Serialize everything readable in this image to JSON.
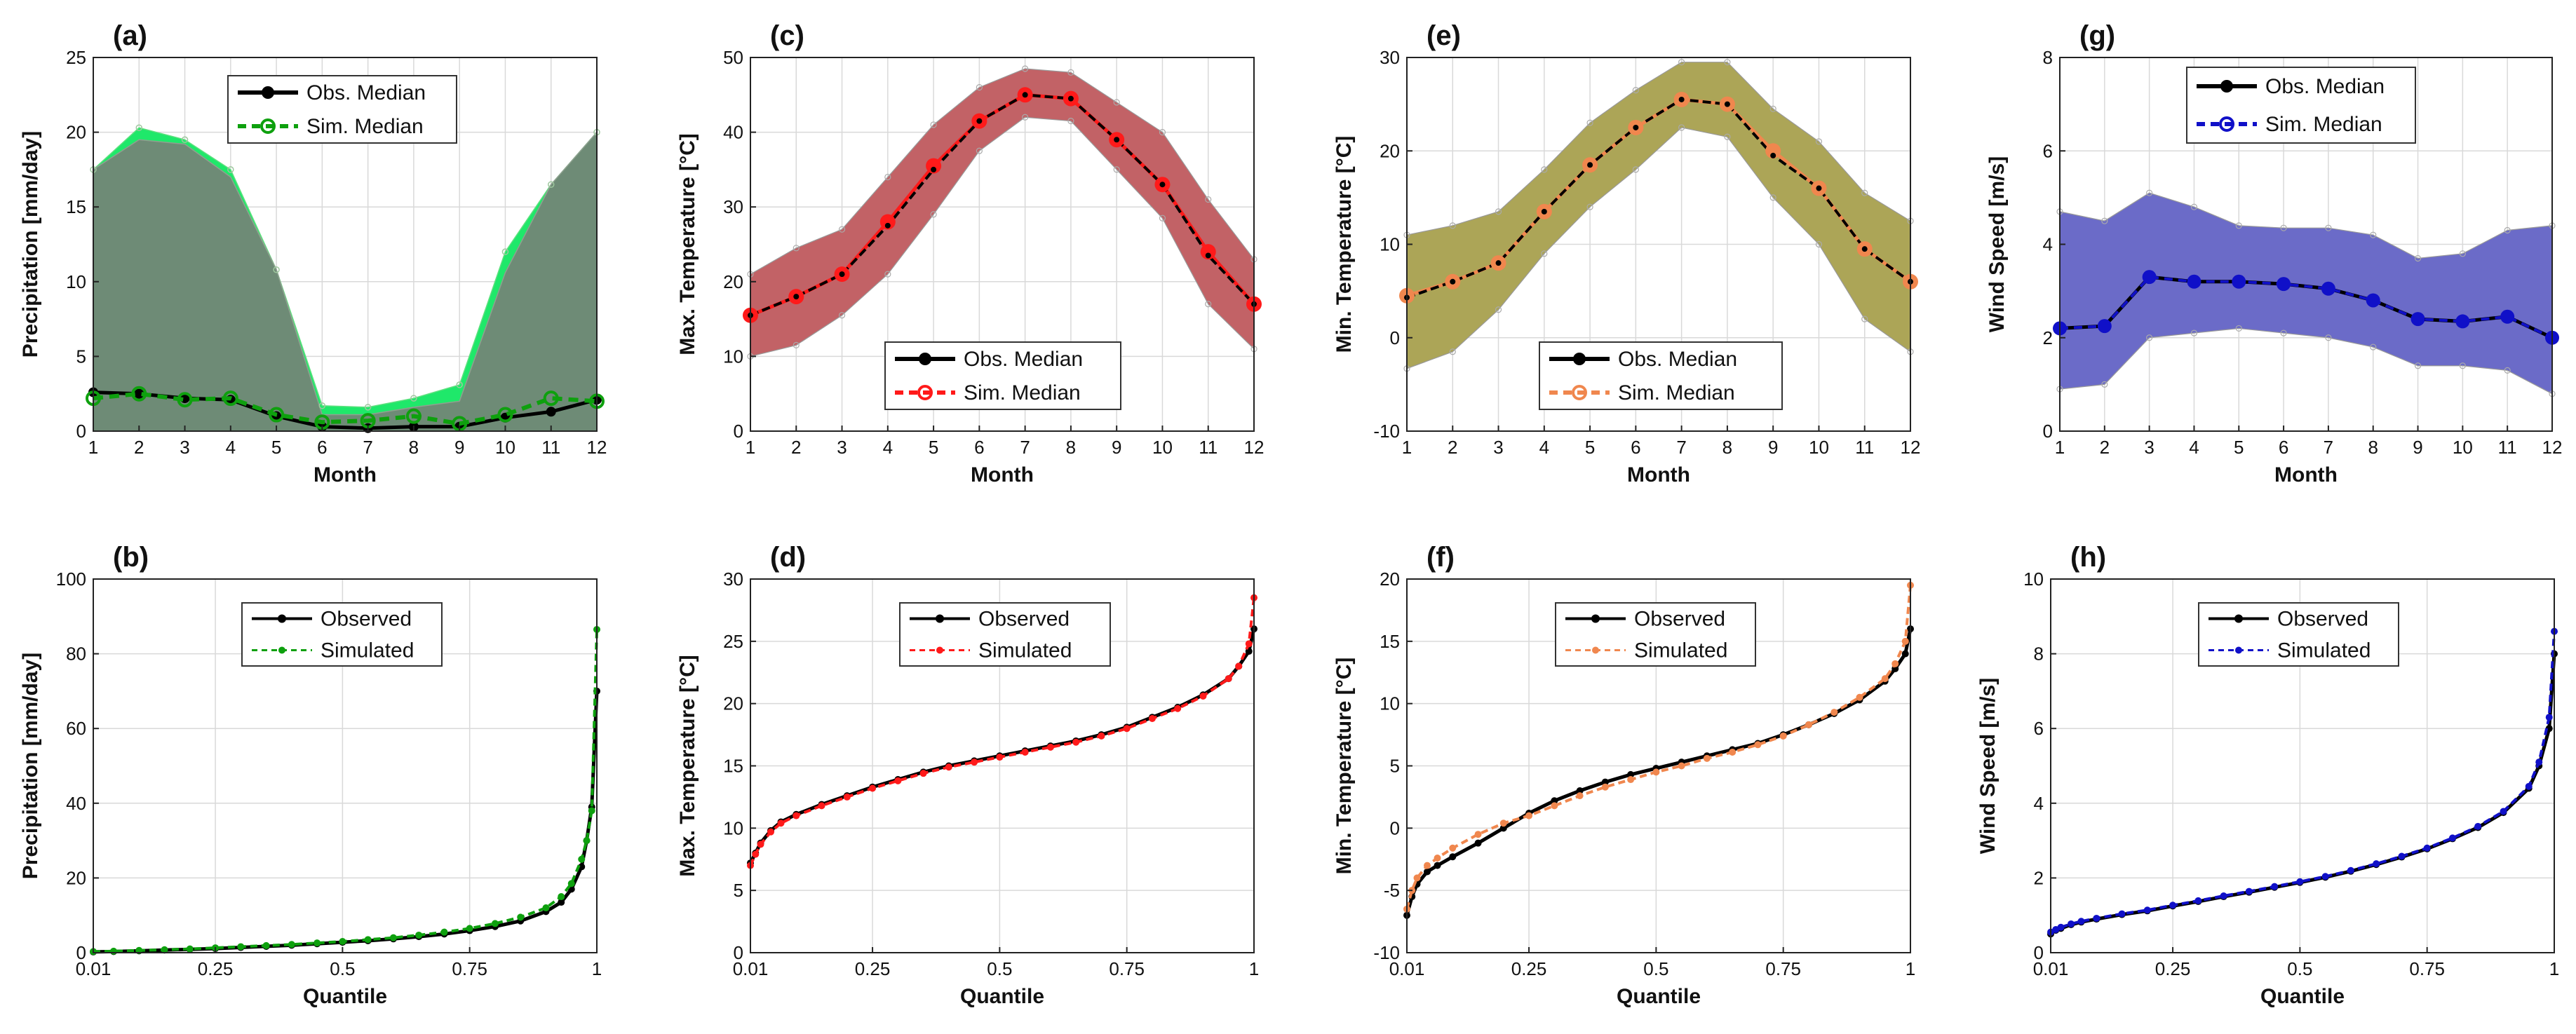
{
  "colors": {
    "precip_band_sim": "#1fe86a",
    "precip_band_obs": "#6e8b76",
    "precip_sim": "#0ea00e",
    "tmax_band": "#c26266",
    "tmax_sim": "#ff1a1a",
    "tmin_band": "#aca557",
    "tmin_sim": "#f0874e",
    "wind_band": "#6b6bc8",
    "wind_sim": "#1010c8",
    "obs": "#000000"
  },
  "chart_data": [
    {
      "id": "a",
      "panel_label": "(a)",
      "type": "area",
      "x": [
        1,
        2,
        3,
        4,
        5,
        6,
        7,
        8,
        9,
        10,
        11,
        12
      ],
      "xlabel": "Month",
      "ylabel": "Precipitation [mm/day]",
      "xlim": [
        1,
        12
      ],
      "ylim": [
        0,
        25
      ],
      "yticks": [
        0,
        5,
        10,
        15,
        20,
        25
      ],
      "ytick_labels": [
        "0",
        "5",
        "10",
        "15",
        "20",
        "25"
      ],
      "xticks": [
        1,
        2,
        3,
        4,
        5,
        6,
        7,
        8,
        9,
        10,
        11,
        12
      ],
      "xtick_labels": [
        "1",
        "2",
        "3",
        "4",
        "5",
        "6",
        "7",
        "8",
        "9",
        "10",
        "11",
        "12"
      ],
      "band_sim": {
        "lower": [
          0,
          0,
          0,
          0,
          0,
          0,
          0,
          0,
          0,
          0,
          0,
          0
        ],
        "upper": [
          17.5,
          20.3,
          19.5,
          17.5,
          10.8,
          1.7,
          1.6,
          2.2,
          3.1,
          12.0,
          16.5,
          20.0
        ]
      },
      "band_obs": {
        "lower": [
          0,
          0,
          0,
          0,
          0,
          0,
          0,
          0,
          0,
          0,
          0,
          0
        ],
        "upper": [
          17.5,
          19.5,
          19.2,
          17.0,
          10.8,
          1.1,
          1.1,
          1.6,
          2.0,
          10.6,
          16.5,
          20.0
        ]
      },
      "series": [
        {
          "name": "Obs. Median",
          "values": [
            2.6,
            2.5,
            2.2,
            2.1,
            1.0,
            0.3,
            0.2,
            0.3,
            0.3,
            0.9,
            1.3,
            2.1
          ]
        },
        {
          "name": "Sim. Median",
          "values": [
            2.2,
            2.5,
            2.1,
            2.2,
            1.1,
            0.6,
            0.7,
            1.0,
            0.5,
            1.1,
            2.2,
            2.0
          ]
        }
      ],
      "legend": [
        "Obs. Median",
        "Sim. Median"
      ]
    },
    {
      "id": "c",
      "panel_label": "(c)",
      "type": "area",
      "x": [
        1,
        2,
        3,
        4,
        5,
        6,
        7,
        8,
        9,
        10,
        11,
        12
      ],
      "xlabel": "Month",
      "ylabel": "Max. Temperature [°C]",
      "xlim": [
        1,
        12
      ],
      "ylim": [
        0,
        50
      ],
      "yticks": [
        0,
        10,
        20,
        30,
        40,
        50
      ],
      "ytick_labels": [
        "0",
        "10",
        "20",
        "30",
        "40",
        "50"
      ],
      "xticks": [
        1,
        2,
        3,
        4,
        5,
        6,
        7,
        8,
        9,
        10,
        11,
        12
      ],
      "xtick_labels": [
        "1",
        "2",
        "3",
        "4",
        "5",
        "6",
        "7",
        "8",
        "9",
        "10",
        "11",
        "12"
      ],
      "band": {
        "lower": [
          10,
          11.5,
          15.5,
          21,
          29,
          37.5,
          42,
          41.5,
          35,
          28.5,
          17,
          11
        ],
        "upper": [
          21,
          24.5,
          27,
          34,
          41,
          46,
          48.5,
          48,
          44,
          40,
          31,
          23
        ]
      },
      "series": [
        {
          "name": "Obs. Median",
          "values": [
            15.5,
            18,
            21,
            27.5,
            35,
            41.5,
            45,
            44.5,
            39,
            33,
            23.5,
            17
          ]
        },
        {
          "name": "Sim. Median",
          "values": [
            15.5,
            18,
            21,
            28,
            35.5,
            41.5,
            45,
            44.5,
            39,
            33,
            24,
            17
          ]
        }
      ],
      "legend": [
        "Obs. Median",
        "Sim. Median"
      ]
    },
    {
      "id": "e",
      "panel_label": "(e)",
      "type": "area",
      "x": [
        1,
        2,
        3,
        4,
        5,
        6,
        7,
        8,
        9,
        10,
        11,
        12
      ],
      "xlabel": "Month",
      "ylabel": "Min. Temperature [°C]",
      "xlim": [
        1,
        12
      ],
      "ylim": [
        -10,
        30
      ],
      "yticks": [
        -10,
        0,
        10,
        20,
        30
      ],
      "ytick_labels": [
        "-10",
        "0",
        "10",
        "20",
        "30"
      ],
      "xticks": [
        1,
        2,
        3,
        4,
        5,
        6,
        7,
        8,
        9,
        10,
        11,
        12
      ],
      "xtick_labels": [
        "1",
        "2",
        "3",
        "4",
        "5",
        "6",
        "7",
        "8",
        "9",
        "10",
        "11",
        "12"
      ],
      "band": {
        "lower": [
          -3.3,
          -1.5,
          3,
          9,
          14,
          18,
          22.5,
          21.5,
          15,
          10,
          2,
          -1.5
        ],
        "upper": [
          11,
          12,
          13.5,
          18,
          23,
          26.5,
          29.5,
          29.5,
          24.5,
          21,
          15.5,
          12.5
        ]
      },
      "series": [
        {
          "name": "Obs. Median",
          "values": [
            4.3,
            6,
            8,
            13.5,
            18.5,
            22.5,
            25.5,
            25,
            19.5,
            16,
            9.5,
            6
          ]
        },
        {
          "name": "Sim. Median",
          "values": [
            4.5,
            6,
            8,
            13.5,
            18.5,
            22.5,
            25.5,
            25,
            20,
            16,
            9.5,
            6
          ]
        }
      ],
      "legend": [
        "Obs. Median",
        "Sim. Median"
      ]
    },
    {
      "id": "g",
      "panel_label": "(g)",
      "type": "area",
      "x": [
        1,
        2,
        3,
        4,
        5,
        6,
        7,
        8,
        9,
        10,
        11,
        12
      ],
      "xlabel": "Month",
      "ylabel": "Wind Speed [m/s]",
      "xlim": [
        1,
        12
      ],
      "ylim": [
        0,
        8
      ],
      "yticks": [
        0,
        2,
        4,
        6,
        8
      ],
      "ytick_labels": [
        "0",
        "2",
        "4",
        "6",
        "8"
      ],
      "xticks": [
        1,
        2,
        3,
        4,
        5,
        6,
        7,
        8,
        9,
        10,
        11,
        12
      ],
      "xtick_labels": [
        "1",
        "2",
        "3",
        "4",
        "5",
        "6",
        "7",
        "8",
        "9",
        "10",
        "11",
        "12"
      ],
      "band": {
        "lower": [
          0.9,
          1.0,
          2.0,
          2.1,
          2.2,
          2.1,
          2.0,
          1.8,
          1.4,
          1.4,
          1.3,
          0.8
        ],
        "upper": [
          4.7,
          4.5,
          5.1,
          4.8,
          4.4,
          4.35,
          4.35,
          4.2,
          3.7,
          3.8,
          4.3,
          4.4
        ]
      },
      "series": [
        {
          "name": "Obs. Median",
          "values": [
            2.2,
            2.25,
            3.3,
            3.2,
            3.2,
            3.15,
            3.05,
            2.8,
            2.4,
            2.35,
            2.45,
            2.0
          ]
        },
        {
          "name": "Sim. Median",
          "values": [
            2.2,
            2.25,
            3.3,
            3.2,
            3.2,
            3.15,
            3.05,
            2.8,
            2.4,
            2.35,
            2.45,
            2.0
          ]
        }
      ],
      "legend": [
        "Obs. Median",
        "Sim. Median"
      ]
    },
    {
      "id": "b",
      "panel_label": "(b)",
      "type": "line",
      "xlabel": "Quantile",
      "ylabel": "Precipitation [mm/day]",
      "xlim": [
        0.01,
        1
      ],
      "ylim": [
        0,
        100
      ],
      "xticks": [
        0.01,
        0.25,
        0.5,
        0.75,
        1
      ],
      "xtick_labels": [
        "0.01",
        "0.25",
        "0.5",
        "0.75",
        "1"
      ],
      "yticks": [
        0,
        20,
        40,
        60,
        80,
        100
      ],
      "ytick_labels": [
        "0",
        "20",
        "40",
        "60",
        "80",
        "100"
      ],
      "quantiles": [
        0.01,
        0.05,
        0.1,
        0.15,
        0.2,
        0.25,
        0.3,
        0.35,
        0.4,
        0.45,
        0.5,
        0.55,
        0.6,
        0.65,
        0.7,
        0.75,
        0.8,
        0.85,
        0.9,
        0.93,
        0.95,
        0.97,
        0.98,
        0.99,
        1.0
      ],
      "series": [
        {
          "name": "Observed",
          "values": [
            0.2,
            0.3,
            0.5,
            0.7,
            0.9,
            1.1,
            1.4,
            1.7,
            2.0,
            2.4,
            2.8,
            3.2,
            3.7,
            4.3,
            5.0,
            5.9,
            7.0,
            8.5,
            11,
            13.5,
            17,
            23,
            30,
            39,
            70
          ]
        },
        {
          "name": "Simulated",
          "values": [
            0.3,
            0.4,
            0.6,
            0.8,
            1.0,
            1.3,
            1.6,
            1.9,
            2.2,
            2.6,
            3.0,
            3.5,
            4.0,
            4.7,
            5.5,
            6.5,
            7.8,
            9.5,
            12,
            15,
            18.5,
            25,
            30,
            38,
            86.5
          ]
        }
      ],
      "legend": [
        "Observed",
        "Simulated"
      ]
    },
    {
      "id": "d",
      "panel_label": "(d)",
      "type": "line",
      "xlabel": "Quantile",
      "ylabel": "Max. Temperature [°C]",
      "xlim": [
        0.01,
        1
      ],
      "ylim": [
        0,
        30
      ],
      "xticks": [
        0.01,
        0.25,
        0.5,
        0.75,
        1
      ],
      "xtick_labels": [
        "0.01",
        "0.25",
        "0.5",
        "0.75",
        "1"
      ],
      "yticks": [
        0,
        5,
        10,
        15,
        20,
        25,
        30
      ],
      "ytick_labels": [
        "0",
        "5",
        "10",
        "15",
        "20",
        "25",
        "30"
      ],
      "quantiles": [
        0.01,
        0.02,
        0.03,
        0.05,
        0.07,
        0.1,
        0.15,
        0.2,
        0.25,
        0.3,
        0.35,
        0.4,
        0.45,
        0.5,
        0.55,
        0.6,
        0.65,
        0.7,
        0.75,
        0.8,
        0.85,
        0.9,
        0.95,
        0.97,
        0.99,
        1.0
      ],
      "series": [
        {
          "name": "Observed",
          "values": [
            7.2,
            8.0,
            8.8,
            9.8,
            10.5,
            11.1,
            11.9,
            12.6,
            13.3,
            13.9,
            14.5,
            15.0,
            15.4,
            15.8,
            16.2,
            16.6,
            17.0,
            17.5,
            18.1,
            18.9,
            19.7,
            20.7,
            22.0,
            23.0,
            24.2,
            26.0
          ]
        },
        {
          "name": "Simulated",
          "values": [
            7.0,
            7.9,
            8.7,
            9.7,
            10.4,
            11.0,
            11.8,
            12.5,
            13.2,
            13.8,
            14.4,
            14.9,
            15.3,
            15.7,
            16.1,
            16.5,
            16.9,
            17.4,
            18.0,
            18.8,
            19.6,
            20.6,
            22.0,
            23.0,
            24.8,
            28.5
          ]
        }
      ],
      "legend": [
        "Observed",
        "Simulated"
      ]
    },
    {
      "id": "f",
      "panel_label": "(f)",
      "type": "line",
      "xlabel": "Quantile",
      "ylabel": "Min. Temperature [°C]",
      "xlim": [
        0.01,
        1
      ],
      "ylim": [
        -10,
        20
      ],
      "xticks": [
        0.01,
        0.25,
        0.5,
        0.75,
        1
      ],
      "xtick_labels": [
        "0.01",
        "0.25",
        "0.5",
        "0.75",
        "1"
      ],
      "yticks": [
        -10,
        -5,
        0,
        5,
        10,
        15,
        20
      ],
      "ytick_labels": [
        "-10",
        "-5",
        "0",
        "5",
        "10",
        "15",
        "20"
      ],
      "quantiles": [
        0.01,
        0.02,
        0.03,
        0.05,
        0.07,
        0.1,
        0.15,
        0.2,
        0.25,
        0.3,
        0.35,
        0.4,
        0.45,
        0.5,
        0.55,
        0.6,
        0.65,
        0.7,
        0.75,
        0.8,
        0.85,
        0.9,
        0.95,
        0.97,
        0.99,
        1.0
      ],
      "series": [
        {
          "name": "Observed",
          "values": [
            -7.0,
            -5.5,
            -4.5,
            -3.5,
            -3.0,
            -2.3,
            -1.2,
            0.0,
            1.2,
            2.2,
            3.0,
            3.7,
            4.3,
            4.8,
            5.3,
            5.8,
            6.3,
            6.8,
            7.5,
            8.3,
            9.2,
            10.3,
            11.8,
            12.8,
            14.0,
            16.0
          ]
        },
        {
          "name": "Simulated",
          "values": [
            -6.5,
            -5.0,
            -4.0,
            -3.0,
            -2.4,
            -1.6,
            -0.5,
            0.4,
            1.0,
            1.8,
            2.6,
            3.3,
            3.9,
            4.5,
            5.0,
            5.6,
            6.1,
            6.7,
            7.4,
            8.3,
            9.3,
            10.5,
            12.0,
            13.2,
            15.0,
            19.5
          ]
        }
      ],
      "legend": [
        "Observed",
        "Simulated"
      ]
    },
    {
      "id": "h",
      "panel_label": "(h)",
      "type": "line",
      "xlabel": "Quantile",
      "ylabel": "Wind Speed [m/s]",
      "xlim": [
        0.01,
        1
      ],
      "ylim": [
        0,
        10
      ],
      "xticks": [
        0.01,
        0.25,
        0.5,
        0.75,
        1
      ],
      "xtick_labels": [
        "0.01",
        "0.25",
        "0.5",
        "0.75",
        "1"
      ],
      "yticks": [
        0,
        2,
        4,
        6,
        8,
        10
      ],
      "ytick_labels": [
        "0",
        "2",
        "4",
        "6",
        "8",
        "10"
      ],
      "quantiles": [
        0.01,
        0.02,
        0.03,
        0.05,
        0.07,
        0.1,
        0.15,
        0.2,
        0.25,
        0.3,
        0.35,
        0.4,
        0.45,
        0.5,
        0.55,
        0.6,
        0.65,
        0.7,
        0.75,
        0.8,
        0.85,
        0.9,
        0.95,
        0.97,
        0.99,
        1.0
      ],
      "series": [
        {
          "name": "Observed",
          "values": [
            0.5,
            0.6,
            0.65,
            0.75,
            0.82,
            0.9,
            1.02,
            1.12,
            1.25,
            1.37,
            1.5,
            1.62,
            1.75,
            1.88,
            2.02,
            2.18,
            2.36,
            2.56,
            2.78,
            3.05,
            3.35,
            3.75,
            4.4,
            5.0,
            6.0,
            8.0
          ]
        },
        {
          "name": "Simulated",
          "values": [
            0.55,
            0.62,
            0.68,
            0.77,
            0.84,
            0.92,
            1.04,
            1.14,
            1.27,
            1.39,
            1.52,
            1.64,
            1.77,
            1.9,
            2.04,
            2.2,
            2.38,
            2.58,
            2.8,
            3.07,
            3.38,
            3.78,
            4.45,
            5.1,
            6.3,
            8.6
          ]
        }
      ],
      "legend": [
        "Observed",
        "Simulated"
      ]
    }
  ]
}
